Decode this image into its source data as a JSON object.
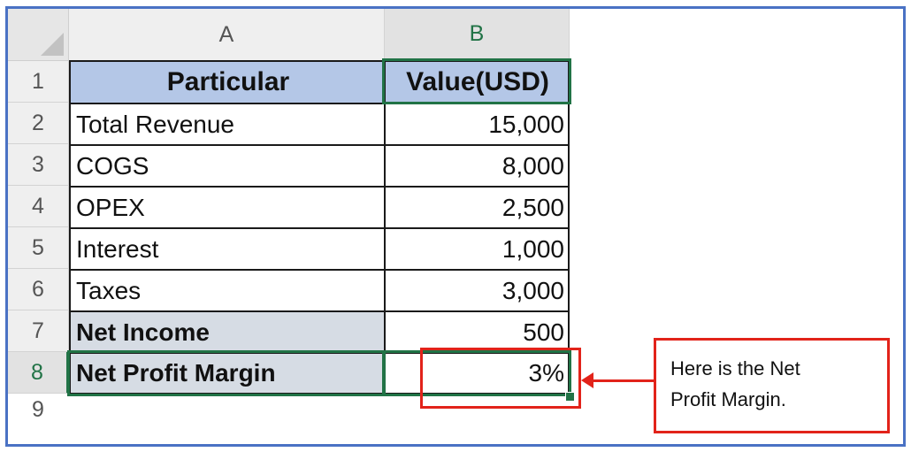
{
  "sheet": {
    "columns": [
      {
        "label": "A",
        "selected": false
      },
      {
        "label": "B",
        "selected": true
      }
    ],
    "rows": [
      {
        "num": "1",
        "a": "Particular",
        "b": "Value(USD)",
        "header": true
      },
      {
        "num": "2",
        "a": "Total Revenue",
        "b": "15,000"
      },
      {
        "num": "3",
        "a": "COGS",
        "b": "8,000"
      },
      {
        "num": "4",
        "a": "OPEX",
        "b": "2,500"
      },
      {
        "num": "5",
        "a": "Interest",
        "b": "1,000"
      },
      {
        "num": "6",
        "a": "Taxes",
        "b": "3,000"
      },
      {
        "num": "7",
        "a": "Net Income",
        "b": "500",
        "bold_a": true
      },
      {
        "num": "8",
        "a": "Net Profit Margin",
        "b": "3%",
        "bold_a": true,
        "selected": true
      }
    ],
    "next_row_num": "9",
    "selected_cell": "B8"
  },
  "callout": {
    "line1": "Here is the Net",
    "line2": "Profit Margin."
  },
  "colors": {
    "frame": "#4a72c4",
    "header_fill": "#b4c7e7",
    "label_fill": "#d6dce4",
    "selection": "#217346",
    "annotation": "#e2231a"
  }
}
